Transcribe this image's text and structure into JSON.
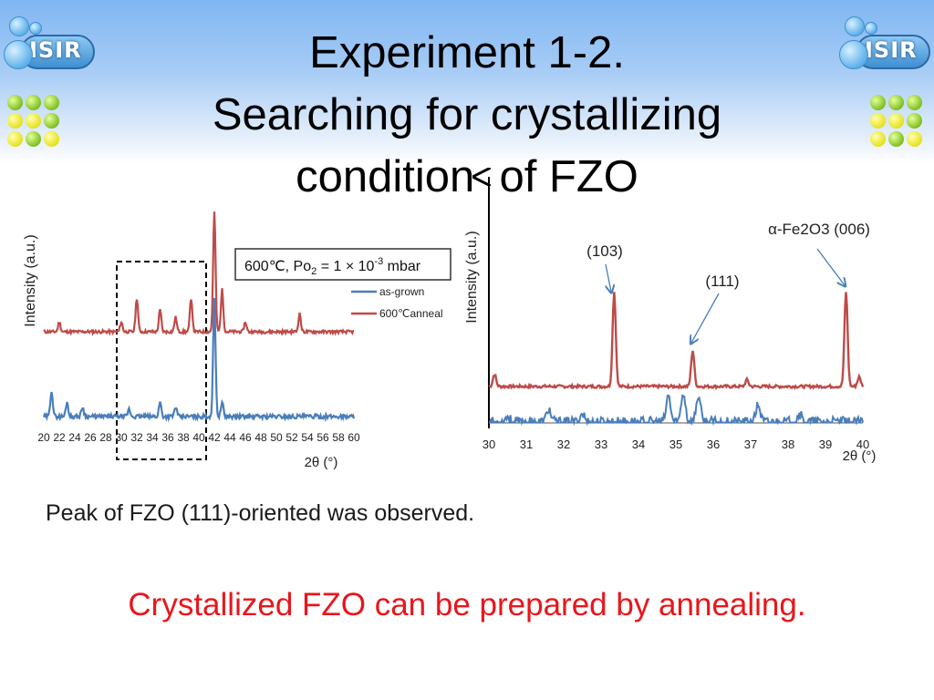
{
  "header": {
    "title_line1": "Experiment 1-2.",
    "title_line2": "Searching for crystallizing",
    "title_line3": "condition  of FZO",
    "logo_text": "ISIR"
  },
  "chart_data": [
    {
      "type": "line",
      "xlabel": "2θ (°)",
      "ylabel": "Intensity (a.u.)",
      "xlim": [
        20,
        60
      ],
      "x_ticks": [
        20,
        22,
        24,
        26,
        28,
        30,
        32,
        34,
        36,
        38,
        40,
        42,
        44,
        46,
        48,
        50,
        52,
        54,
        56,
        58,
        60
      ],
      "annotation": {
        "prefix": "600℃, Po",
        "sub": "2",
        "mid": " = 1 × 10",
        "sup": "-3",
        "suffix": " mbar"
      },
      "highlight_range": [
        29.5,
        40.5
      ],
      "legend_position": "right",
      "series": [
        {
          "name": "as-grown",
          "color": "#4a7ebb",
          "peaks": [
            [
              21,
              0.22
            ],
            [
              23,
              0.12
            ],
            [
              25,
              0.08
            ],
            [
              31,
              0.06
            ],
            [
              35,
              0.12
            ],
            [
              37,
              0.08
            ],
            [
              42,
              1.0
            ],
            [
              43,
              0.12
            ]
          ]
        },
        {
          "name": "600℃anneal",
          "color": "#be4b48",
          "peaks": [
            [
              22,
              0.08
            ],
            [
              30,
              0.08
            ],
            [
              32,
              0.28
            ],
            [
              35,
              0.18
            ],
            [
              37,
              0.12
            ],
            [
              39,
              0.28
            ],
            [
              42,
              1.0
            ],
            [
              43,
              0.35
            ],
            [
              46,
              0.08
            ],
            [
              53,
              0.15
            ]
          ]
        }
      ]
    },
    {
      "type": "line",
      "xlabel": "2θ (°)",
      "ylabel": "Intensity (a.u.)",
      "xlim": [
        30,
        40
      ],
      "x_ticks": [
        30,
        31,
        32,
        33,
        34,
        35,
        36,
        37,
        38,
        39,
        40
      ],
      "annotations": [
        {
          "text": "(103)",
          "x": 33.3,
          "y": 1.0
        },
        {
          "text": "(111)",
          "x": 35.5,
          "y": 0.42
        },
        {
          "text": "α-Fe2O3 (006)",
          "x": 39.6,
          "y": 1.0
        }
      ],
      "series": [
        {
          "name": "600℃anneal",
          "color": "#be4b48",
          "peaks": [
            [
              30.15,
              0.13
            ],
            [
              33.35,
              1.0
            ],
            [
              35.45,
              0.38
            ],
            [
              36.9,
              0.07
            ],
            [
              39.55,
              1.0
            ],
            [
              39.9,
              0.1
            ]
          ]
        },
        {
          "name": "as-grown",
          "color": "#4a7ebb",
          "peaks": [
            [
              30.5,
              0.2
            ],
            [
              31.6,
              0.45
            ],
            [
              32.5,
              0.3
            ],
            [
              34.8,
              0.9
            ],
            [
              35.2,
              1.0
            ],
            [
              35.6,
              0.9
            ],
            [
              37.2,
              0.6
            ],
            [
              38.3,
              0.3
            ]
          ]
        }
      ]
    }
  ],
  "body": {
    "observation": "Peak of FZO (111)-oriented was observed.",
    "conclusion": "Crystallized FZO can be prepared by annealing."
  }
}
